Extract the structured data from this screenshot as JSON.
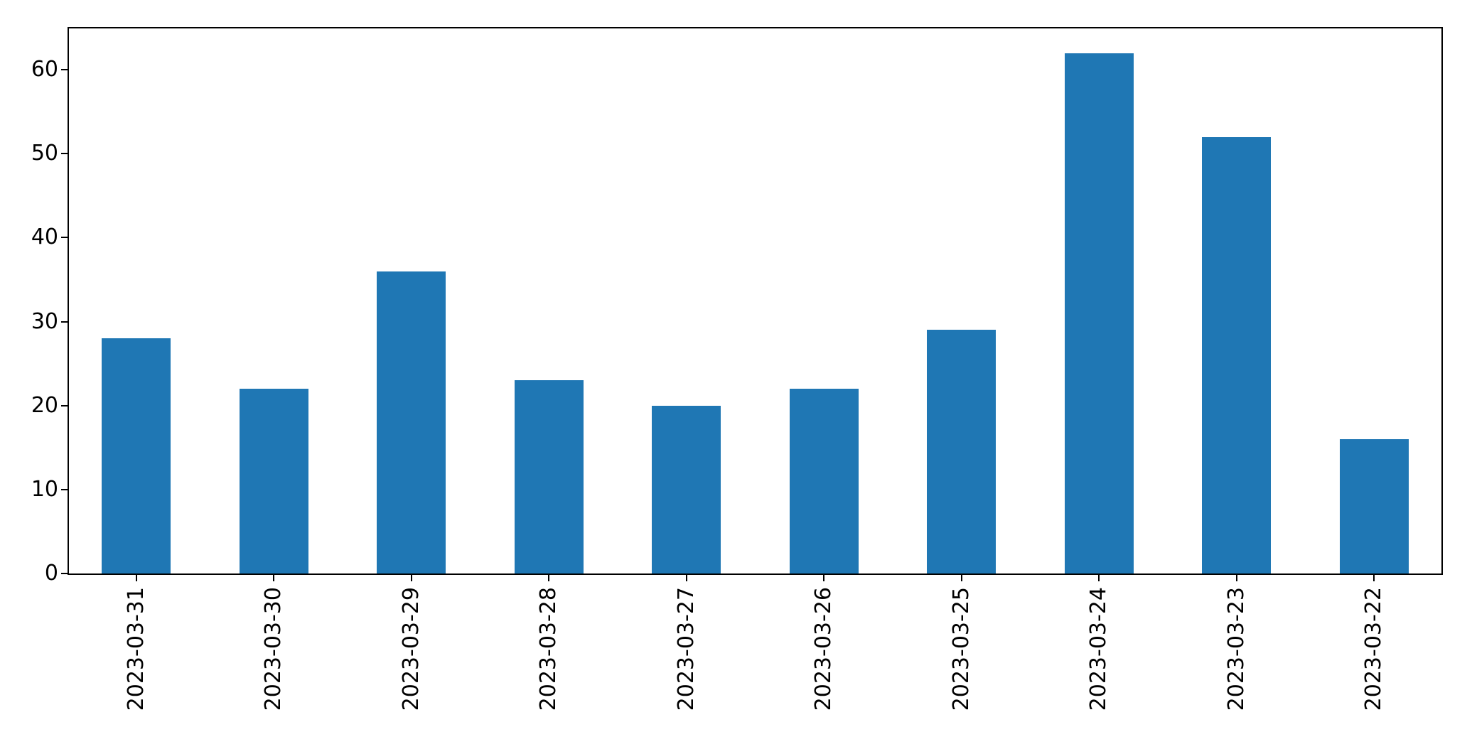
{
  "figure": {
    "background_color": "#ffffff",
    "spine_color": "#000000",
    "tick_color": "#000000",
    "tick_label_color": "#000000"
  },
  "chart_data": {
    "type": "bar",
    "title": "",
    "xlabel": "",
    "ylabel": "",
    "categories": [
      "2023-03-31",
      "2023-03-30",
      "2023-03-29",
      "2023-03-28",
      "2023-03-27",
      "2023-03-26",
      "2023-03-25",
      "2023-03-24",
      "2023-03-23",
      "2023-03-22"
    ],
    "values": [
      28,
      22,
      36,
      23,
      20,
      22,
      29,
      62,
      52,
      16
    ],
    "yticks": [
      0,
      10,
      20,
      30,
      40,
      50,
      60
    ],
    "ylim": [
      0,
      65.1
    ],
    "xtick_rotation_deg": 90,
    "bar_color": "#1f77b4",
    "bar_relative_width": 0.5,
    "grid": false,
    "legend": "none"
  }
}
